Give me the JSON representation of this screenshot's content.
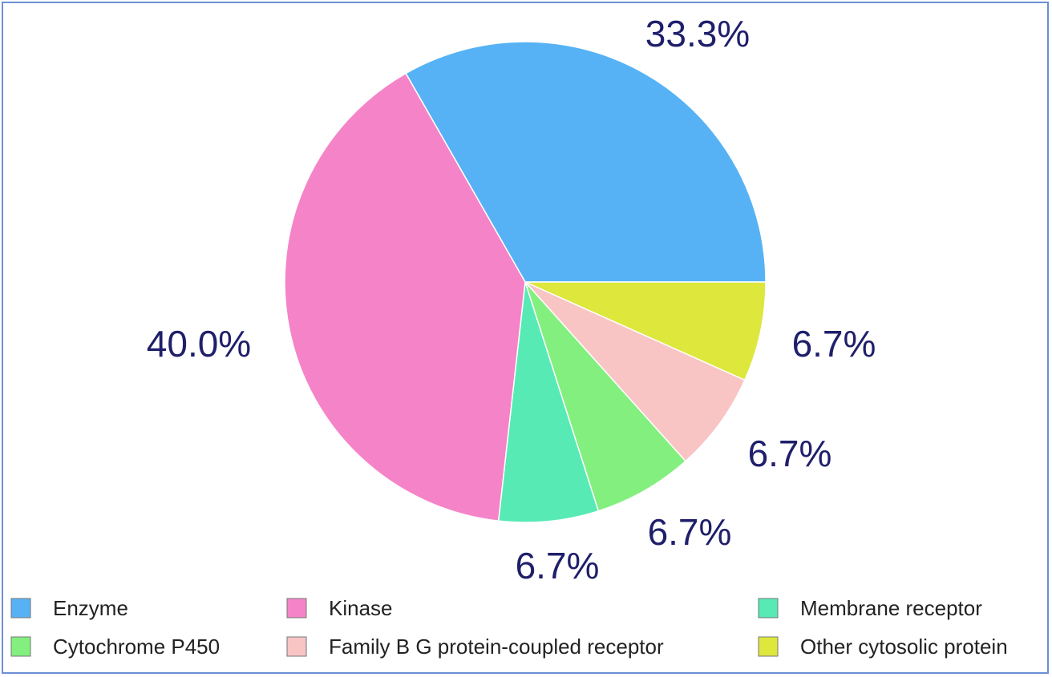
{
  "chart_data": {
    "type": "pie",
    "slices": [
      {
        "label": "Enzyme",
        "value": 33.3,
        "display": "33.3%",
        "color": "#56b2f5"
      },
      {
        "label": "Other cytosolic protein",
        "value": 6.7,
        "display": "6.7%",
        "color": "#dde73c"
      },
      {
        "label": "Family B G protein-coupled receptor",
        "value": 6.7,
        "display": "6.7%",
        "color": "#f8c4c4"
      },
      {
        "label": "Cytochrome P450",
        "value": 6.7,
        "display": "6.7%",
        "color": "#83ef7f"
      },
      {
        "label": "Membrane receptor",
        "value": 6.7,
        "display": "6.7%",
        "color": "#57eab5"
      },
      {
        "label": "Kinase",
        "value": 40.0,
        "display": "40.0%",
        "color": "#f583c7"
      }
    ],
    "legend": {
      "placement": "bottom",
      "rows": [
        [
          "Enzyme",
          "Kinase",
          "Membrane receptor"
        ],
        [
          "Cytochrome P450",
          "Family B G protein-coupled receptor",
          "Other cytosolic protein"
        ]
      ]
    },
    "label_color": "#1f1f6b",
    "title": "",
    "xlabel": "",
    "ylabel": ""
  }
}
